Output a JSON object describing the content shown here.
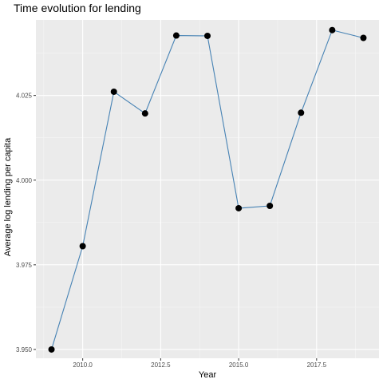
{
  "chart_data": {
    "type": "line",
    "title": "Time evolution for lending",
    "xlabel": "Year",
    "ylabel": "Average log lending per capita",
    "xlim": [
      2008.5,
      2019.5
    ],
    "ylim": [
      3.9474,
      4.0473
    ],
    "x_ticks": [
      2010.0,
      2012.5,
      2015.0,
      2017.5
    ],
    "x_tick_labels": [
      "2010.0",
      "2012.5",
      "2015.0",
      "2017.5"
    ],
    "y_ticks": [
      3.95,
      3.975,
      4.0,
      4.025
    ],
    "y_tick_labels": [
      "3.950",
      "3.975",
      "4.000",
      "4.025"
    ],
    "series": [
      {
        "x": [
          2009,
          2010,
          2011,
          2012,
          2013,
          2014,
          2015,
          2016,
          2017,
          2018,
          2019
        ],
        "y": [
          3.95,
          3.9805,
          4.0261,
          4.0197,
          4.0427,
          4.0426,
          3.9917,
          3.9924,
          4.0199,
          4.0443,
          4.042
        ]
      }
    ],
    "grid": true,
    "legend": "none",
    "colors": {
      "line": "#4682b4",
      "point": "#000000",
      "panel": "#ebebeb",
      "grid_major": "#ffffff",
      "grid_minor": "#f5f5f5",
      "tick_label": "#4d4d4d"
    }
  }
}
